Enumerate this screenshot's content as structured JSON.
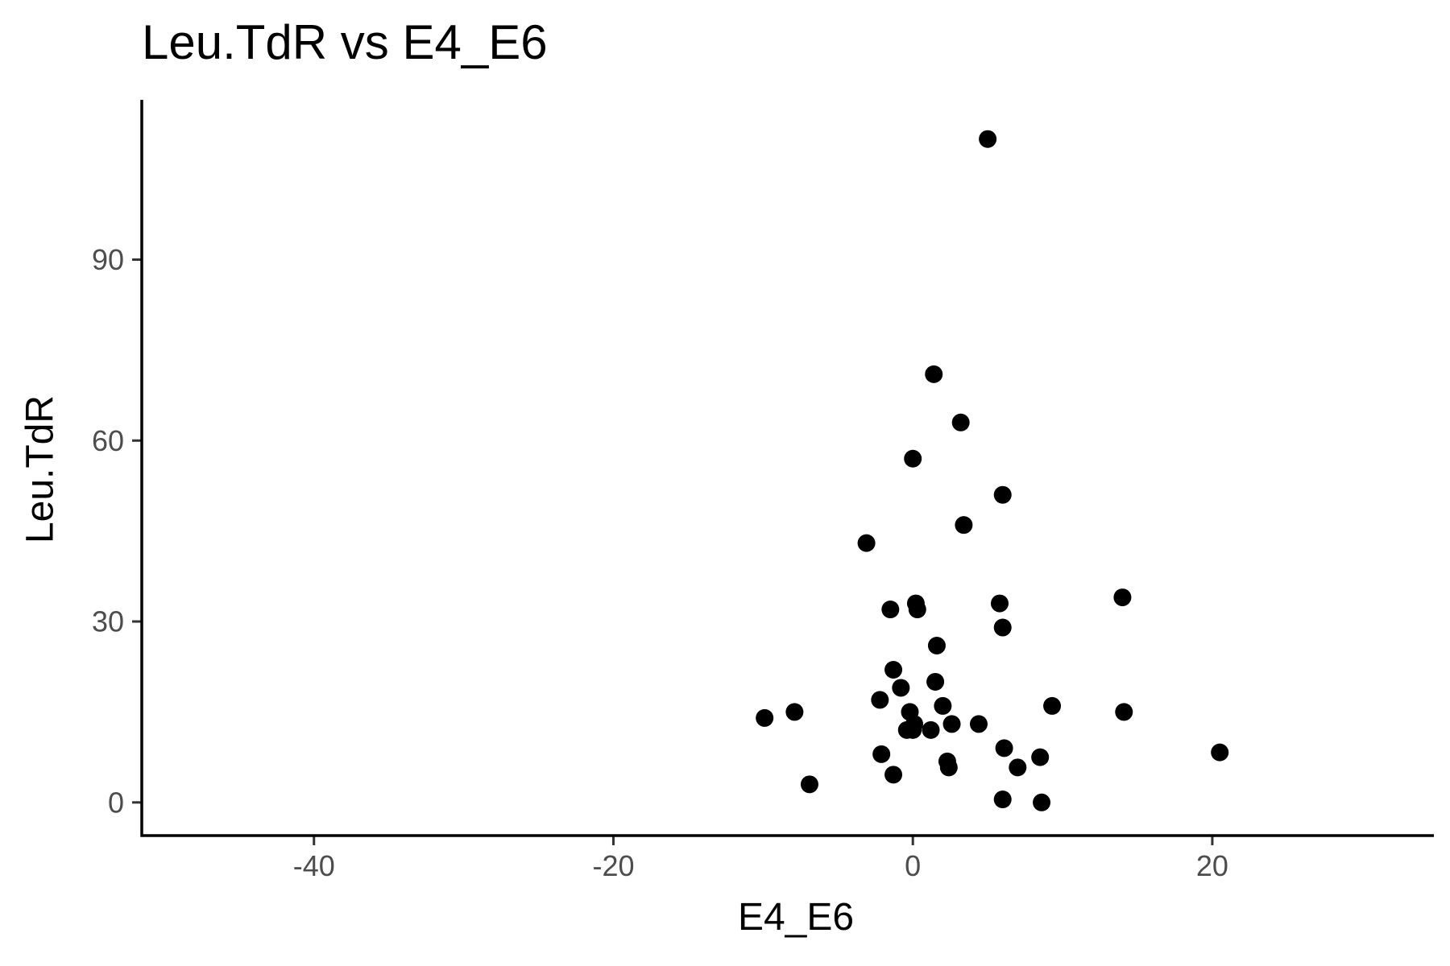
{
  "chart_data": {
    "type": "scatter",
    "title": "Leu.TdR vs E4_E6",
    "xlabel": "E4_E6",
    "ylabel": "Leu.TdR",
    "xlim": [
      -51.5,
      34.8
    ],
    "ylim": [
      -5.5,
      116.5
    ],
    "x_ticks": [
      -40,
      -20,
      0,
      20
    ],
    "x_tick_labels": [
      "-40",
      "-20",
      "0",
      "20"
    ],
    "y_ticks": [
      0,
      30,
      60,
      90
    ],
    "y_tick_labels": [
      "0",
      "30",
      "60",
      "90"
    ],
    "grid": false,
    "legend": "none",
    "marker_color": "#000000",
    "points": [
      {
        "x": 5.0,
        "y": 110.0
      },
      {
        "x": 1.4,
        "y": 71.0
      },
      {
        "x": 3.2,
        "y": 63.0
      },
      {
        "x": 0.0,
        "y": 57.0
      },
      {
        "x": 6.0,
        "y": 51.0
      },
      {
        "x": 3.4,
        "y": 46.0
      },
      {
        "x": -3.1,
        "y": 43.0
      },
      {
        "x": 14.0,
        "y": 34.0
      },
      {
        "x": 0.2,
        "y": 33.0
      },
      {
        "x": 5.8,
        "y": 33.0
      },
      {
        "x": -1.5,
        "y": 32.0
      },
      {
        "x": 0.3,
        "y": 32.0
      },
      {
        "x": 6.0,
        "y": 29.0
      },
      {
        "x": 1.6,
        "y": 26.0
      },
      {
        "x": -1.3,
        "y": 22.0
      },
      {
        "x": 1.5,
        "y": 20.0
      },
      {
        "x": -0.8,
        "y": 19.0
      },
      {
        "x": -2.2,
        "y": 17.0
      },
      {
        "x": 2.0,
        "y": 16.0
      },
      {
        "x": 9.3,
        "y": 16.0
      },
      {
        "x": -0.2,
        "y": 15.0
      },
      {
        "x": -7.9,
        "y": 15.0
      },
      {
        "x": 14.1,
        "y": 15.0
      },
      {
        "x": -9.9,
        "y": 14.0
      },
      {
        "x": 0.1,
        "y": 13.0
      },
      {
        "x": 2.6,
        "y": 13.0
      },
      {
        "x": 4.4,
        "y": 13.0
      },
      {
        "x": -0.4,
        "y": 12.0
      },
      {
        "x": 1.2,
        "y": 12.0
      },
      {
        "x": 0.0,
        "y": 12.0
      },
      {
        "x": 6.1,
        "y": 9.0
      },
      {
        "x": -2.1,
        "y": 8.0
      },
      {
        "x": 8.5,
        "y": 7.5
      },
      {
        "x": 20.5,
        "y": 8.3
      },
      {
        "x": 2.3,
        "y": 6.8
      },
      {
        "x": 7.0,
        "y": 5.8
      },
      {
        "x": 2.4,
        "y": 5.8
      },
      {
        "x": -1.3,
        "y": 4.6
      },
      {
        "x": -6.9,
        "y": 3.0
      },
      {
        "x": 6.0,
        "y": 0.5
      },
      {
        "x": 8.6,
        "y": 0.0
      }
    ]
  }
}
